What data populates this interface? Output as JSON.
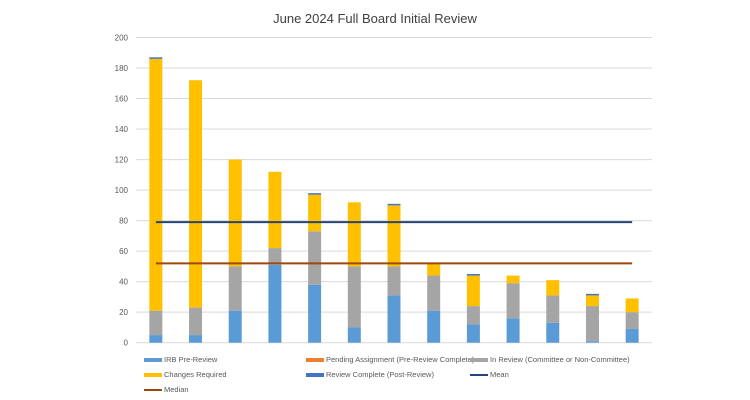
{
  "chart_data": {
    "type": "bar",
    "stacked": true,
    "title": "June 2024 Full Board Initial Review",
    "xlabel": "",
    "ylabel": "",
    "ylim": [
      0,
      200
    ],
    "yticks": [
      "0",
      "20",
      "40",
      "60",
      "80",
      "100",
      "120",
      "140",
      "160",
      "180",
      "200"
    ],
    "grid": true,
    "legend_position": "bottom",
    "categories": [
      "",
      "",
      "",
      "",
      "",
      "",
      "",
      "",
      "",
      "",
      "",
      "",
      ""
    ],
    "series": [
      {
        "name": "IRB Pre-Review",
        "color": "#5B9BD5",
        "values": [
          5,
          5,
          21,
          51,
          38,
          10,
          31,
          21,
          12,
          16,
          13,
          1,
          9
        ]
      },
      {
        "name": "Pending Assignment (Pre-Review Complete)",
        "color": "#ED7D31",
        "values": [
          0,
          0,
          0,
          0,
          0,
          0,
          0,
          0,
          0,
          0,
          0,
          0,
          0
        ]
      },
      {
        "name": "In Review (Committee or Non-Committee)",
        "color": "#A5A5A5",
        "values": [
          16,
          18,
          29,
          11,
          35,
          40,
          19,
          23,
          12,
          23,
          18,
          23,
          11
        ]
      },
      {
        "name": "Changes Required",
        "color": "#FFC000",
        "values": [
          165,
          149,
          70,
          50,
          24,
          42,
          40,
          8,
          20,
          5,
          10,
          7,
          9
        ]
      },
      {
        "name": "Review Complete (Post-Review)",
        "color": "#4472C4",
        "values": [
          1,
          0,
          0,
          0,
          1,
          0,
          1,
          0,
          1,
          0,
          0,
          1,
          0
        ]
      }
    ],
    "lines": [
      {
        "name": "Mean",
        "color": "#264478",
        "value": 79
      },
      {
        "name": "Median",
        "color": "#9E480E",
        "value": 52
      }
    ]
  }
}
